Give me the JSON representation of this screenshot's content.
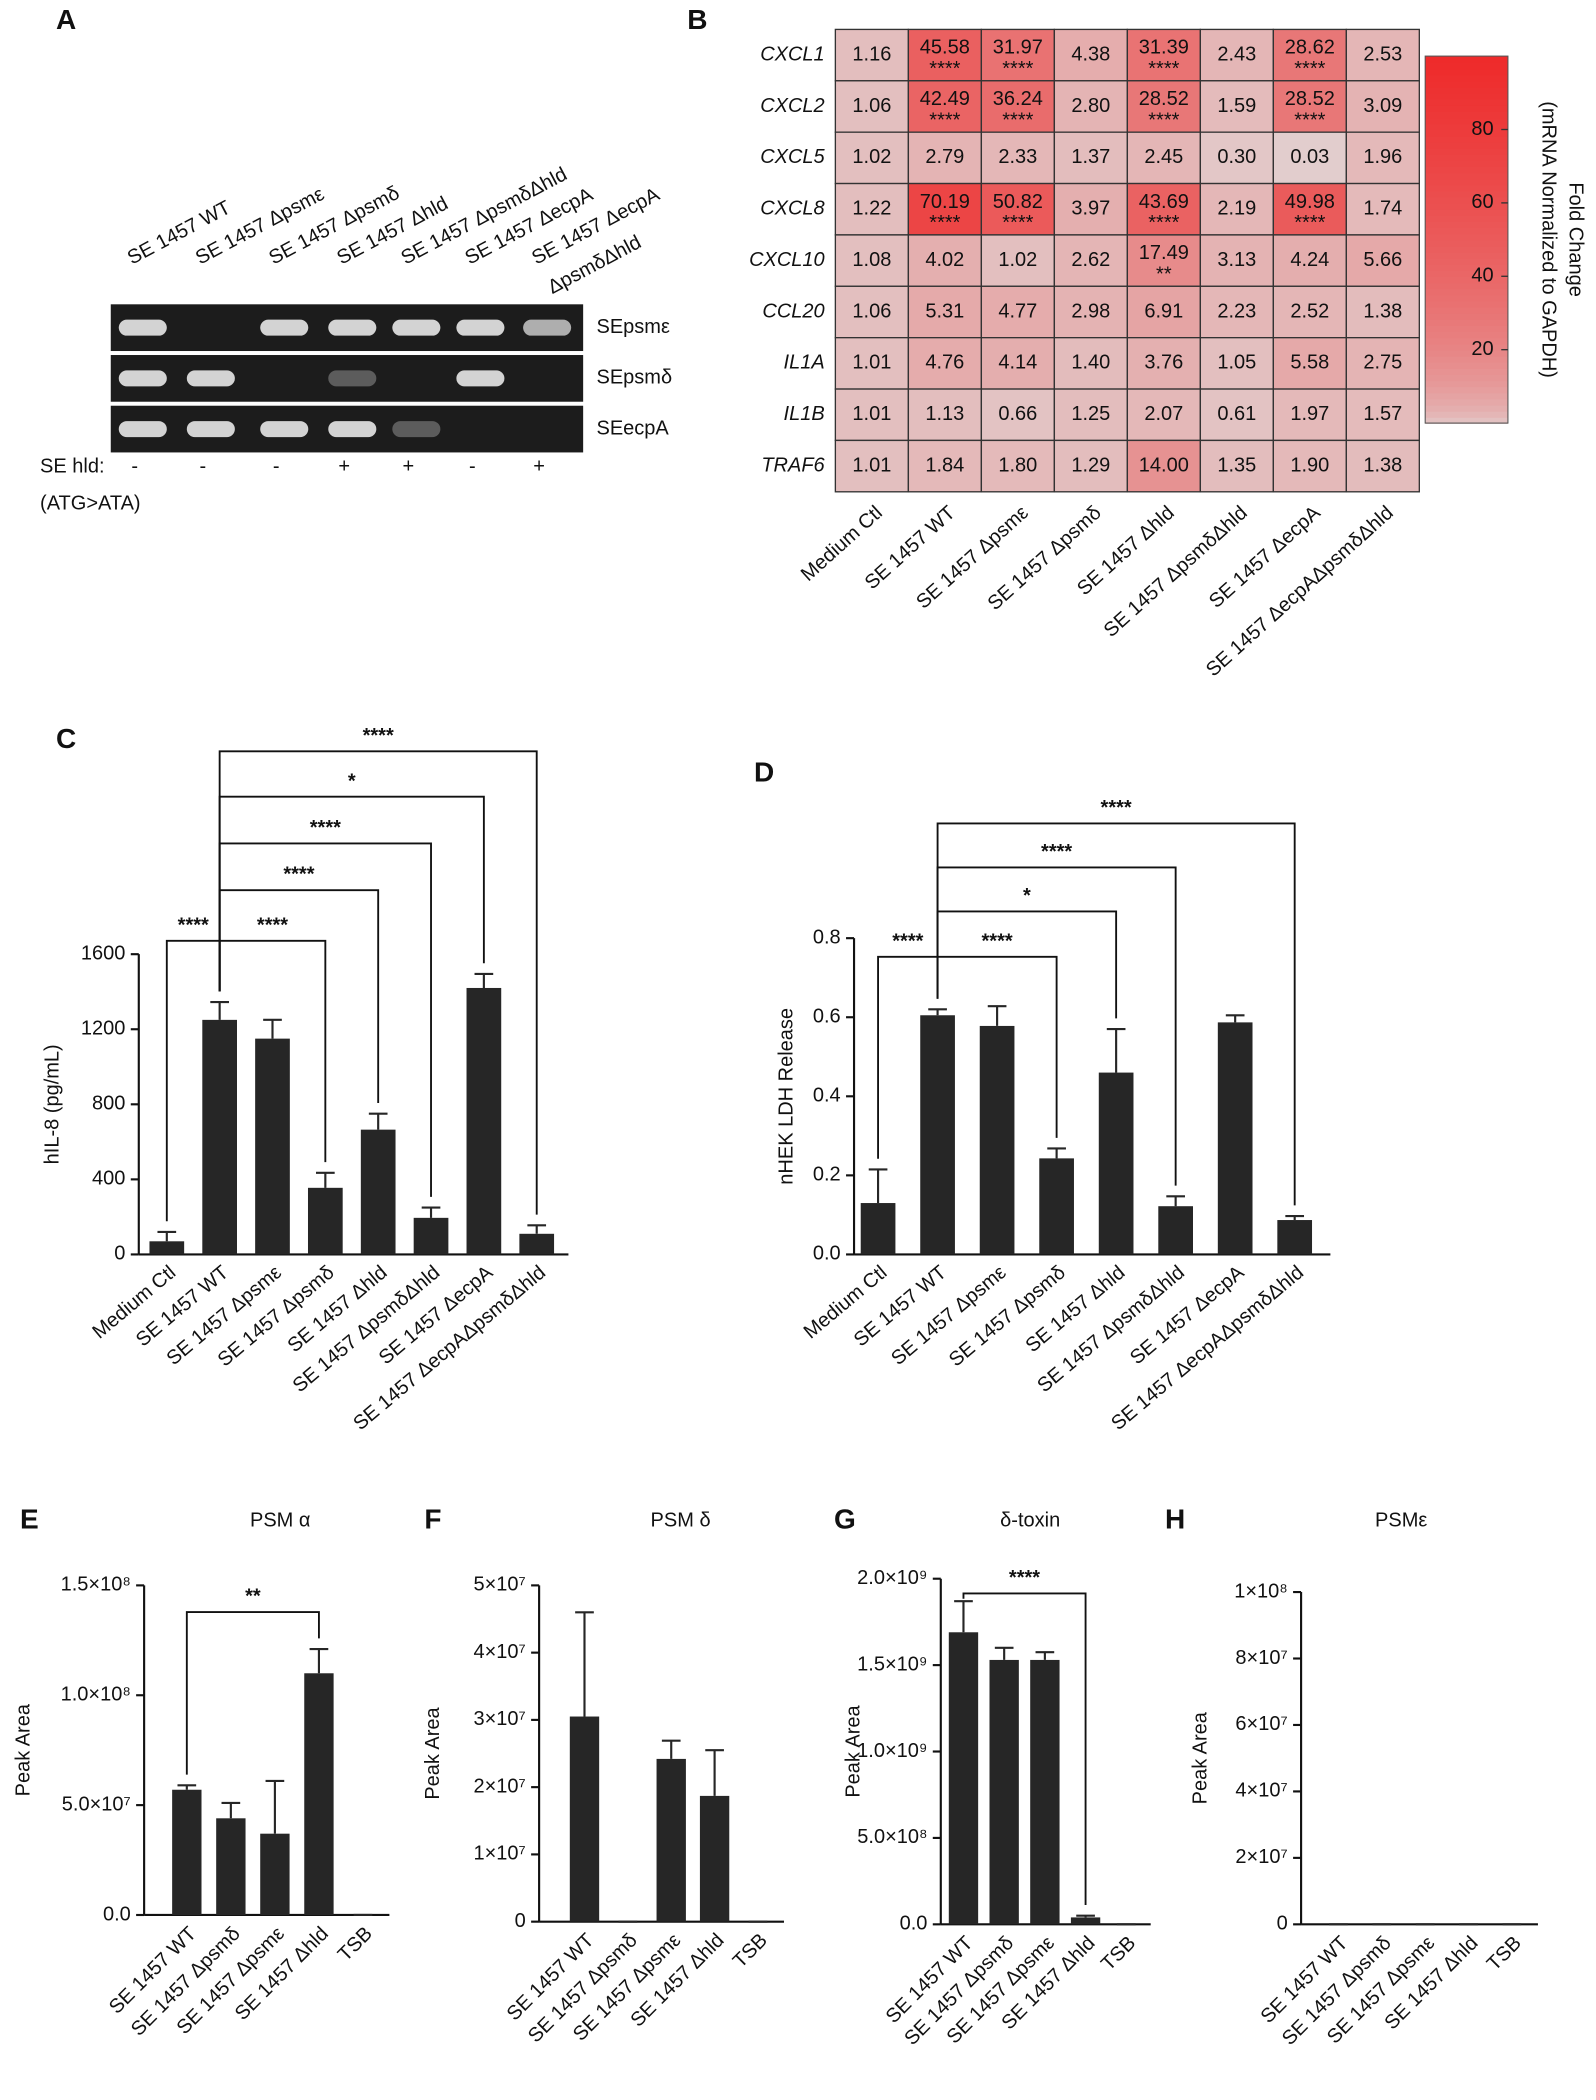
{
  "chart_data": [
    {
      "type": "gel",
      "panel": "A",
      "lanes": [
        [
          "SE 1457 WT"
        ],
        [
          "SE 1457 Δpsmε"
        ],
        [
          "SE 1457 Δpsmδ"
        ],
        [
          "SE 1457 Δhld"
        ],
        [
          "SE 1457 ΔpsmδΔhld"
        ],
        [
          "SE 1457 ΔecpA"
        ],
        [
          "SE 1457 ΔecpA",
          "ΔpsmδΔhld"
        ]
      ],
      "rows": [
        "SEpsmε",
        "SEpsmδ",
        "SEecpA"
      ],
      "hld_label": "SE hld:",
      "hld_sub": "(ATG>ATA)",
      "hld": [
        "-",
        "-",
        "-",
        "+",
        "+",
        "-",
        "+"
      ]
    },
    {
      "type": "heatmap",
      "panel": "B",
      "rows": [
        "CXCL1",
        "CXCL2",
        "CXCL5",
        "CXCL8",
        "CXCL10",
        "CCL20",
        "IL1A",
        "IL1B",
        "TRAF6"
      ],
      "columns": [
        "Medium Ctl",
        "SE 1457 WT",
        "SE 1457 Δpsmε",
        "SE 1457 Δpsmδ",
        "SE 1457 Δhld",
        "SE 1457 ΔpsmδΔhld",
        "SE 1457 ΔecpA",
        "SE 1457 ΔecpAΔpsmδΔhld"
      ],
      "values": [
        [
          1.16,
          45.58,
          31.97,
          4.38,
          31.39,
          2.43,
          28.62,
          2.53
        ],
        [
          1.06,
          42.49,
          36.24,
          2.8,
          28.52,
          1.59,
          28.52,
          3.09
        ],
        [
          1.02,
          2.79,
          2.33,
          1.37,
          2.45,
          0.3,
          0.03,
          1.96
        ],
        [
          1.22,
          70.19,
          50.82,
          3.97,
          43.69,
          2.19,
          49.98,
          1.74
        ],
        [
          1.08,
          4.02,
          1.02,
          2.62,
          17.49,
          3.13,
          4.24,
          5.66
        ],
        [
          1.06,
          5.31,
          4.77,
          2.98,
          6.91,
          2.23,
          2.52,
          1.38
        ],
        [
          1.01,
          4.76,
          4.14,
          1.4,
          3.76,
          1.05,
          5.58,
          2.75
        ],
        [
          1.01,
          1.13,
          0.66,
          1.25,
          2.07,
          0.61,
          1.97,
          1.57
        ],
        [
          1.01,
          1.84,
          1.8,
          1.29,
          14.0,
          1.35,
          1.9,
          1.38
        ]
      ],
      "value_labels": [
        [
          "1.16",
          "45.58",
          "31.97",
          "4.38",
          "31.39",
          "2.43",
          "28.62",
          "2.53"
        ],
        [
          "1.06",
          "42.49",
          "36.24",
          "2.80",
          "28.52",
          "1.59",
          "28.52",
          "3.09"
        ],
        [
          "1.02",
          "2.79",
          "2.33",
          "1.37",
          "2.45",
          "0.30",
          "0.03",
          "1.96"
        ],
        [
          "1.22",
          "70.19",
          "50.82",
          "3.97",
          "43.69",
          "2.19",
          "49.98",
          "1.74"
        ],
        [
          "1.08",
          "4.02",
          "1.02",
          "2.62",
          "17.49",
          "3.13",
          "4.24",
          "5.66"
        ],
        [
          "1.06",
          "5.31",
          "4.77",
          "2.98",
          "6.91",
          "2.23",
          "2.52",
          "1.38"
        ],
        [
          "1.01",
          "4.76",
          "4.14",
          "1.40",
          "3.76",
          "1.05",
          "5.58",
          "2.75"
        ],
        [
          "1.01",
          "1.13",
          "0.66",
          "1.25",
          "2.07",
          "0.61",
          "1.97",
          "1.57"
        ],
        [
          "1.01",
          "1.84",
          "1.80",
          "1.29",
          "14.00",
          "1.35",
          "1.90",
          "1.38"
        ]
      ],
      "stars": [
        [
          null,
          "****",
          "****",
          null,
          "****",
          null,
          "****",
          null
        ],
        [
          null,
          "****",
          "****",
          null,
          "****",
          null,
          "****",
          null
        ],
        [
          null,
          null,
          null,
          null,
          null,
          null,
          null,
          null
        ],
        [
          null,
          "****",
          "****",
          null,
          "****",
          null,
          "****",
          null
        ],
        [
          null,
          null,
          null,
          null,
          "**",
          null,
          null,
          null
        ],
        [
          null,
          null,
          null,
          null,
          null,
          null,
          null,
          null
        ],
        [
          null,
          null,
          null,
          null,
          null,
          null,
          null,
          null
        ],
        [
          null,
          null,
          null,
          null,
          null,
          null,
          null,
          null
        ],
        [
          null,
          null,
          null,
          null,
          null,
          null,
          null,
          null
        ]
      ],
      "zlim": [
        0,
        100
      ],
      "zticks": [
        20,
        40,
        60,
        80
      ],
      "colorbar_label": [
        "Fold Change",
        "(mRNA Normalized to GAPDH)"
      ],
      "colors": [
        "#e2d0d0",
        "#ee2a2a"
      ]
    },
    {
      "type": "bar",
      "panel": "C",
      "ylabel": "hIL-8 (pg/mL)",
      "categories": [
        "Medium Ctl",
        "SE 1457 WT",
        "SE 1457 Δpsmε",
        "SE 1457 Δpsmδ",
        "SE 1457 Δhld",
        "SE 1457 ΔpsmδΔhld",
        "SE 1457 ΔecpA",
        "SE 1457 ΔecpAΔpsmδΔhld"
      ],
      "values": [
        70,
        1250,
        1150,
        355,
        665,
        195,
        1420,
        110
      ],
      "errors": [
        50,
        95,
        100,
        80,
        85,
        55,
        75,
        45
      ],
      "ylim": [
        0,
        1600
      ],
      "yticks": [
        0,
        400,
        800,
        1200,
        1600
      ],
      "color": "#262626",
      "significance": [
        {
          "groups": [
            1,
            0
          ],
          "label": "****"
        },
        {
          "groups": [
            1,
            3
          ],
          "label": "****"
        },
        {
          "groups": [
            1,
            4
          ],
          "label": "****"
        },
        {
          "groups": [
            1,
            5
          ],
          "label": "****"
        },
        {
          "groups": [
            1,
            6
          ],
          "label": "*"
        },
        {
          "groups": [
            1,
            7
          ],
          "label": "****"
        }
      ]
    },
    {
      "type": "bar",
      "panel": "D",
      "ylabel": "nHEK LDH Release",
      "categories": [
        "Medium Ctl",
        "SE 1457 WT",
        "SE 1457 Δpsmε",
        "SE 1457 Δpsmδ",
        "SE 1457 Δhld",
        "SE 1457 ΔpsmδΔhld",
        "SE 1457 ΔecpA",
        "SE 1457 ΔecpAΔpsmδΔhld"
      ],
      "values": [
        0.13,
        0.605,
        0.578,
        0.243,
        0.46,
        0.122,
        0.587,
        0.087
      ],
      "errors": [
        0.085,
        0.015,
        0.05,
        0.025,
        0.11,
        0.025,
        0.018,
        0.01
      ],
      "ylim": [
        0,
        0.8
      ],
      "yticks": [
        {
          "value": 0,
          "label": "0.0"
        },
        0.2,
        0.4,
        0.6,
        0.8
      ],
      "color": "#262626",
      "significance": [
        {
          "groups": [
            1,
            0
          ],
          "label": "****"
        },
        {
          "groups": [
            1,
            3
          ],
          "label": "****"
        },
        {
          "groups": [
            1,
            4
          ],
          "label": "*"
        },
        {
          "groups": [
            1,
            5
          ],
          "label": "****"
        },
        {
          "groups": [
            1,
            7
          ],
          "label": "****"
        }
      ]
    },
    {
      "type": "bar",
      "panel": "E",
      "title": "PSM α",
      "ylabel": "Peak Area",
      "categories": [
        "SE 1457 WT",
        "SE 1457 Δpsmδ",
        "SE 1457 Δpsmε",
        "SE 1457 Δhld",
        "TSB"
      ],
      "values": [
        57000000,
        44000000,
        37000000,
        110000000,
        0
      ],
      "errors": [
        2000000,
        7000000,
        24000000,
        11000000,
        0
      ],
      "ylim": [
        0,
        150000000
      ],
      "yticks": [
        {
          "value": 0,
          "label": "0.0"
        },
        {
          "value": 50000000,
          "label": "5.0×10⁷"
        },
        {
          "value": 100000000,
          "label": "1.0×10⁸"
        },
        {
          "value": 150000000,
          "label": "1.5×10⁸"
        }
      ],
      "color": "#262626",
      "significance": [
        {
          "groups": [
            0,
            3
          ],
          "label": "**"
        }
      ]
    },
    {
      "type": "bar",
      "panel": "F",
      "title": "PSM δ",
      "ylabel": "Peak Area",
      "categories": [
        "SE 1457 WT",
        "SE 1457 Δpsmδ",
        "SE 1457 Δpsmε",
        "SE 1457 Δhld",
        "TSB"
      ],
      "values": [
        30500000,
        0,
        24200000,
        18700000,
        0
      ],
      "errors": [
        15500000,
        0,
        2700000,
        6800000,
        0
      ],
      "ylim": [
        0,
        50000000
      ],
      "yticks": [
        0,
        {
          "value": 10000000,
          "label": "1×10⁷"
        },
        {
          "value": 20000000,
          "label": "2×10⁷"
        },
        {
          "value": 30000000,
          "label": "3×10⁷"
        },
        {
          "value": 40000000,
          "label": "4×10⁷"
        },
        {
          "value": 50000000,
          "label": "5×10⁷"
        }
      ],
      "color": "#262626",
      "significance": []
    },
    {
      "type": "bar",
      "panel": "G",
      "title": "δ-toxin",
      "ylabel": "Peak Area",
      "categories": [
        "SE 1457 WT",
        "SE 1457 Δpsmδ",
        "SE 1457 Δpsmε",
        "SE 1457 Δhld",
        "TSB"
      ],
      "values": [
        1690000000,
        1530000000,
        1530000000,
        40000000,
        0
      ],
      "errors": [
        180000000,
        70000000,
        45000000,
        10000000,
        0
      ],
      "ylim": [
        0,
        2000000000
      ],
      "yticks": [
        {
          "value": 0,
          "label": "0.0"
        },
        {
          "value": 500000000,
          "label": "5.0×10⁸"
        },
        {
          "value": 1000000000,
          "label": "1.0×10⁹"
        },
        {
          "value": 1500000000,
          "label": "1.5×10⁹"
        },
        {
          "value": 2000000000,
          "label": "2.0×10⁹"
        }
      ],
      "color": "#262626",
      "significance": [
        {
          "groups": [
            0,
            3
          ],
          "label": "****"
        }
      ]
    },
    {
      "type": "bar",
      "panel": "H",
      "title": "PSMε",
      "ylabel": "Peak Area",
      "categories": [
        "SE 1457 WT",
        "SE 1457 Δpsmδ",
        "SE 1457 Δpsmε",
        "SE 1457 Δhld",
        "TSB"
      ],
      "values": [
        0,
        0,
        0,
        0,
        0
      ],
      "errors": [
        0,
        0,
        0,
        0,
        0
      ],
      "ylim": [
        0,
        100000000
      ],
      "yticks": [
        0,
        {
          "value": 20000000,
          "label": "2×10⁷"
        },
        {
          "value": 40000000,
          "label": "4×10⁷"
        },
        {
          "value": 60000000,
          "label": "6×10⁷"
        },
        {
          "value": 80000000,
          "label": "8×10⁷"
        },
        {
          "value": 100000000,
          "label": "1×10⁸"
        }
      ],
      "color": "#262626",
      "significance": []
    }
  ]
}
